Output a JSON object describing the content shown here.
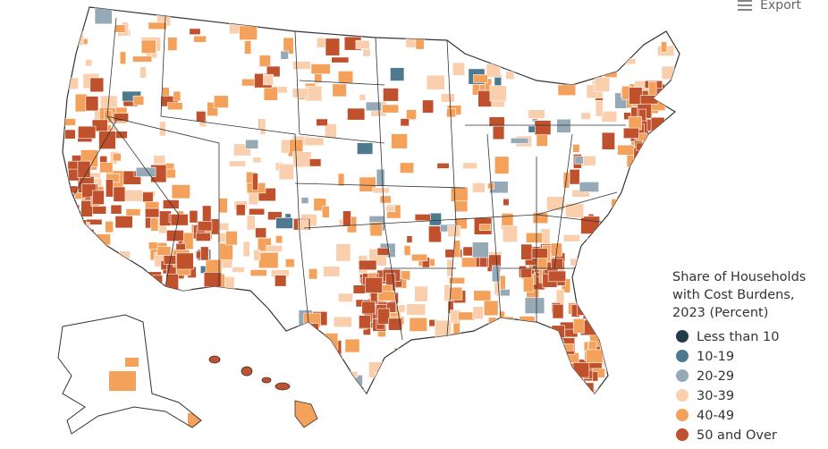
{
  "export_button": {
    "label": "Export"
  },
  "legend": {
    "title_lines": [
      "Share of Households",
      "with Cost Burdens,",
      "2023 (Percent)"
    ],
    "items": [
      {
        "label": "Less than 10",
        "color": "#263b4a"
      },
      {
        "label": "10-19",
        "color": "#4e7a90"
      },
      {
        "label": "20-29",
        "color": "#95aab6"
      },
      {
        "label": "30-39",
        "color": "#f9cfae"
      },
      {
        "label": "40-49",
        "color": "#f4a15b"
      },
      {
        "label": "50 and Over",
        "color": "#bf512c"
      }
    ]
  }
}
